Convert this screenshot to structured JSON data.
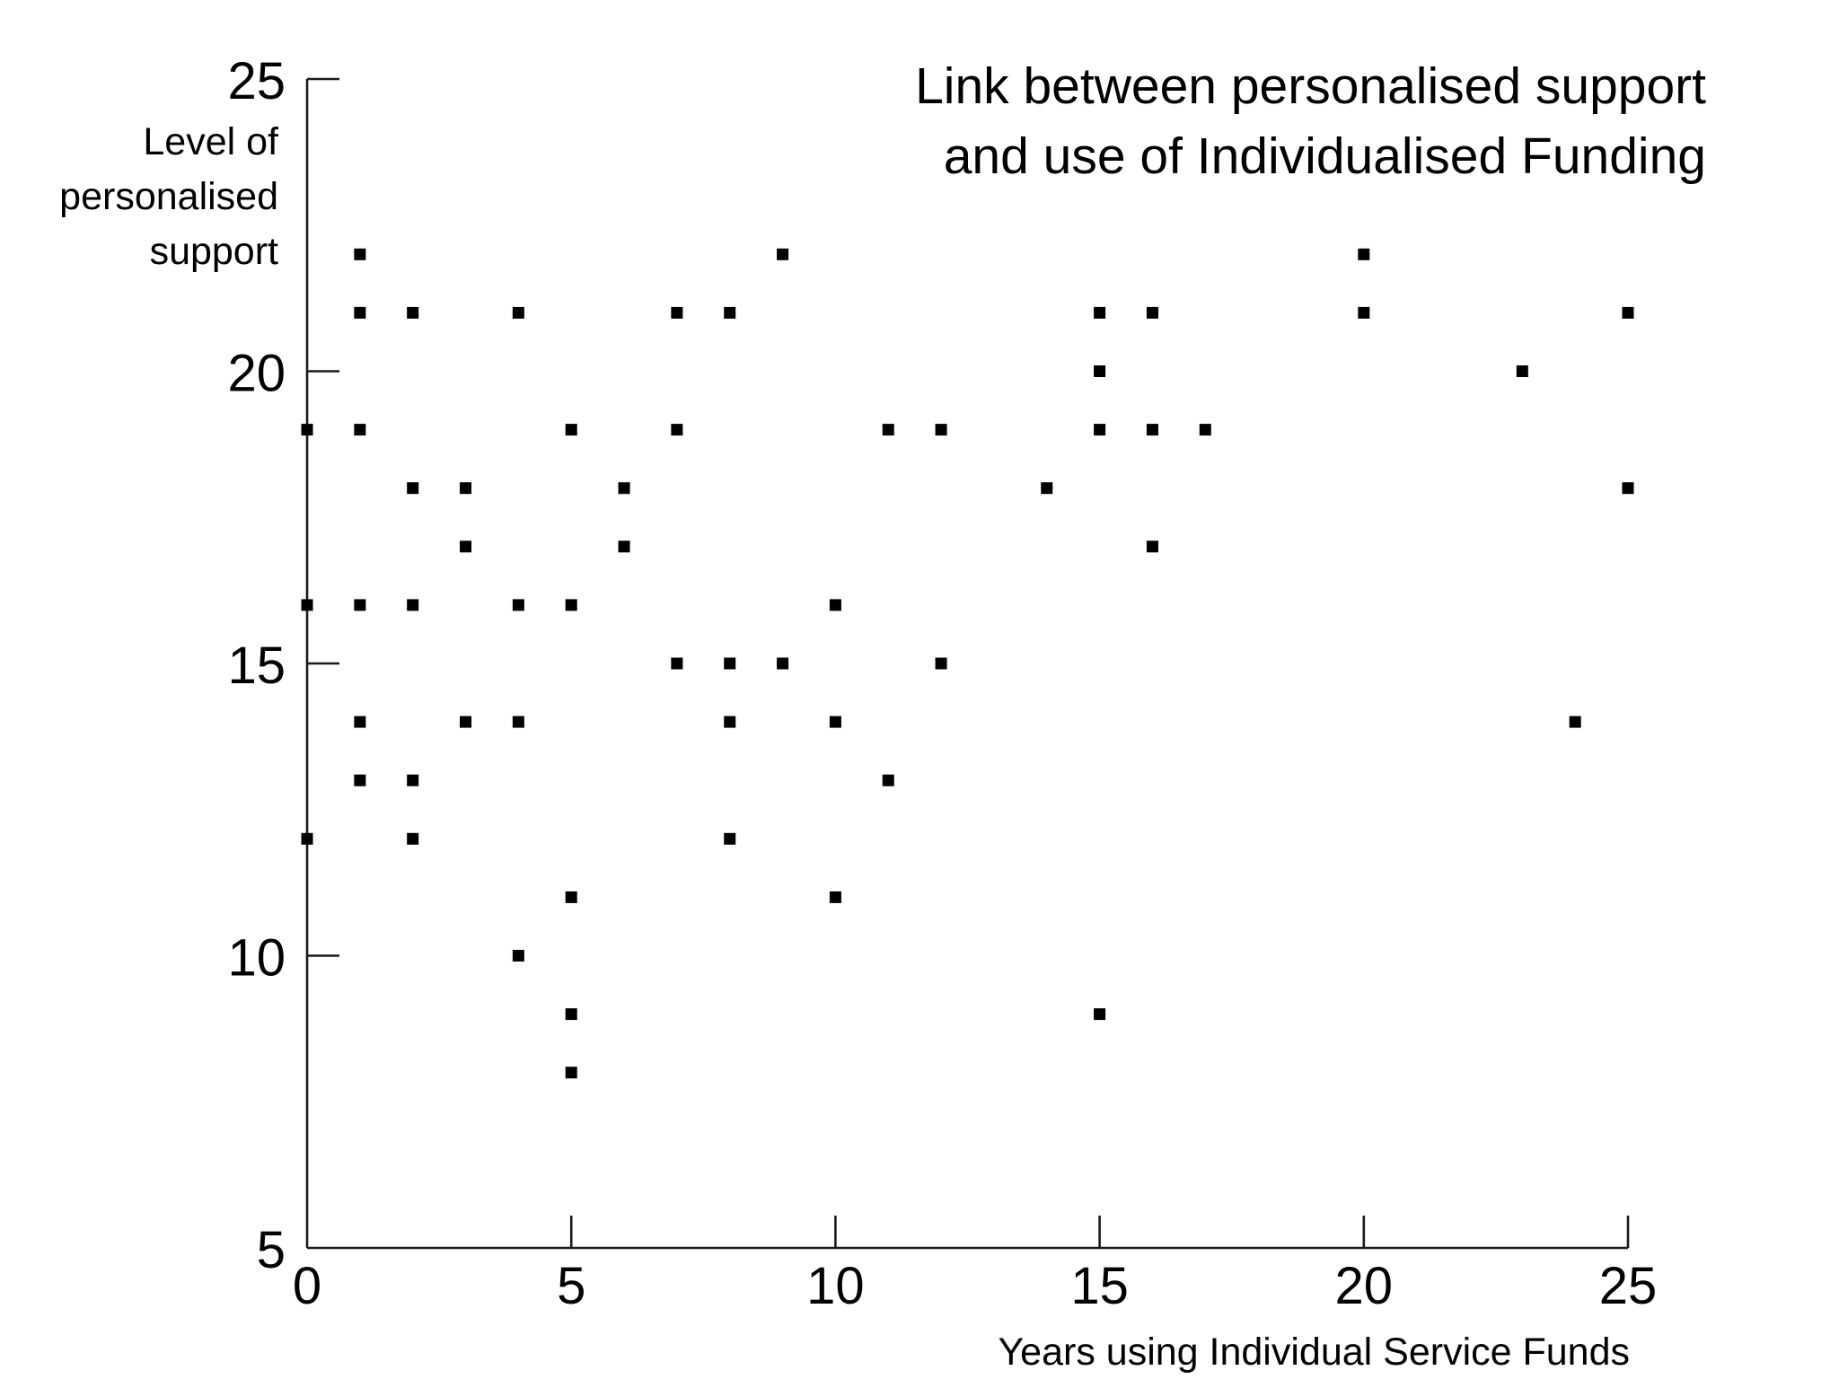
{
  "chart_data": {
    "type": "scatter",
    "title": [
      "Link between personalised support",
      "and use of Individualised Funding"
    ],
    "xlabel": "Years using Individual Service Funds",
    "ylabel": [
      "Level of",
      "personalised",
      "support"
    ],
    "xlim": [
      0,
      25
    ],
    "ylim": [
      5,
      25
    ],
    "x_ticks": [
      "0",
      "5",
      "10",
      "15",
      "20",
      "25"
    ],
    "y_ticks": [
      "5",
      "10",
      "15",
      "20",
      "25"
    ],
    "grid": false,
    "legend": "none",
    "marker": "square",
    "point_color": "#000000",
    "points": [
      {
        "x": 0,
        "y": 19
      },
      {
        "x": 0,
        "y": 16
      },
      {
        "x": 0,
        "y": 12
      },
      {
        "x": 1,
        "y": 22
      },
      {
        "x": 1,
        "y": 21
      },
      {
        "x": 1,
        "y": 19
      },
      {
        "x": 1,
        "y": 16
      },
      {
        "x": 1,
        "y": 14
      },
      {
        "x": 1,
        "y": 13
      },
      {
        "x": 2,
        "y": 21
      },
      {
        "x": 2,
        "y": 18
      },
      {
        "x": 2,
        "y": 16
      },
      {
        "x": 2,
        "y": 13
      },
      {
        "x": 2,
        "y": 12
      },
      {
        "x": 3,
        "y": 18
      },
      {
        "x": 3,
        "y": 17
      },
      {
        "x": 3,
        "y": 14
      },
      {
        "x": 4,
        "y": 21
      },
      {
        "x": 4,
        "y": 16
      },
      {
        "x": 4,
        "y": 14
      },
      {
        "x": 4,
        "y": 10
      },
      {
        "x": 5,
        "y": 19
      },
      {
        "x": 5,
        "y": 16
      },
      {
        "x": 5,
        "y": 11
      },
      {
        "x": 5,
        "y": 9
      },
      {
        "x": 5,
        "y": 8
      },
      {
        "x": 6,
        "y": 18
      },
      {
        "x": 6,
        "y": 17
      },
      {
        "x": 7,
        "y": 21
      },
      {
        "x": 7,
        "y": 19
      },
      {
        "x": 7,
        "y": 15
      },
      {
        "x": 8,
        "y": 21
      },
      {
        "x": 8,
        "y": 15
      },
      {
        "x": 8,
        "y": 14
      },
      {
        "x": 8,
        "y": 12
      },
      {
        "x": 9,
        "y": 22
      },
      {
        "x": 9,
        "y": 15
      },
      {
        "x": 10,
        "y": 16
      },
      {
        "x": 10,
        "y": 14
      },
      {
        "x": 10,
        "y": 11
      },
      {
        "x": 11,
        "y": 19
      },
      {
        "x": 11,
        "y": 13
      },
      {
        "x": 12,
        "y": 19
      },
      {
        "x": 12,
        "y": 15
      },
      {
        "x": 14,
        "y": 18
      },
      {
        "x": 15,
        "y": 21
      },
      {
        "x": 15,
        "y": 20
      },
      {
        "x": 15,
        "y": 19
      },
      {
        "x": 15,
        "y": 9
      },
      {
        "x": 16,
        "y": 21
      },
      {
        "x": 16,
        "y": 19
      },
      {
        "x": 16,
        "y": 17
      },
      {
        "x": 17,
        "y": 19
      },
      {
        "x": 20,
        "y": 22
      },
      {
        "x": 20,
        "y": 21
      },
      {
        "x": 23,
        "y": 20
      },
      {
        "x": 24,
        "y": 14
      },
      {
        "x": 25,
        "y": 21
      },
      {
        "x": 25,
        "y": 18
      }
    ]
  }
}
